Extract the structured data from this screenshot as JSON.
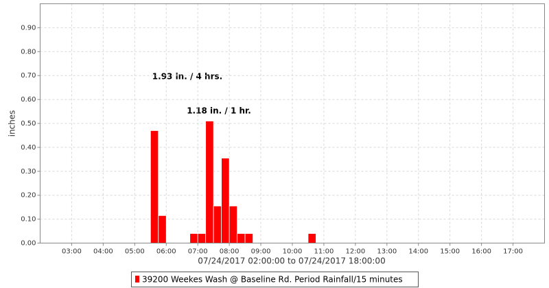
{
  "chart_data": {
    "type": "bar",
    "x_label": "07/24/2017 02:00:00 to 07/24/2017 18:00:00",
    "y_label": "inches",
    "annotations": [
      "1.93 in. / 4 hrs.",
      "1.18 in. / 1 hr."
    ],
    "series": [
      {
        "name": "39200 Weekes Wash @ Baseline Rd. Period Rainfall/15 minutes",
        "color": "#ff0000",
        "x": [
          5.5,
          5.75,
          6.75,
          7.0,
          7.25,
          7.5,
          7.75,
          8.0,
          8.25,
          8.5,
          10.5
        ],
        "values": [
          0.47,
          0.115,
          0.04,
          0.04,
          0.51,
          0.155,
          0.355,
          0.155,
          0.04,
          0.04,
          0.04
        ]
      }
    ],
    "xlim": [
      2,
      18
    ],
    "xticks": [
      {
        "value": 3,
        "label": "03:00"
      },
      {
        "value": 4,
        "label": "04:00"
      },
      {
        "value": 5,
        "label": "05:00"
      },
      {
        "value": 6,
        "label": "06:00"
      },
      {
        "value": 7,
        "label": "07:00"
      },
      {
        "value": 8,
        "label": "08:00"
      },
      {
        "value": 9,
        "label": "09:00"
      },
      {
        "value": 10,
        "label": "10:00"
      },
      {
        "value": 11,
        "label": "11:00"
      },
      {
        "value": 12,
        "label": "12:00"
      },
      {
        "value": 13,
        "label": "13:00"
      },
      {
        "value": 14,
        "label": "14:00"
      },
      {
        "value": 15,
        "label": "15:00"
      },
      {
        "value": 16,
        "label": "16:00"
      },
      {
        "value": 17,
        "label": "17:00"
      }
    ],
    "ylim": [
      0,
      1.0
    ],
    "yticks": [
      {
        "value": 0,
        "label": "0.00"
      },
      {
        "value": 0.1,
        "label": "0.10"
      },
      {
        "value": 0.2,
        "label": "0.20"
      },
      {
        "value": 0.3,
        "label": "0.30"
      },
      {
        "value": 0.4,
        "label": "0.40"
      },
      {
        "value": 0.5,
        "label": "0.50"
      },
      {
        "value": 0.6,
        "label": "0.60"
      },
      {
        "value": 0.7,
        "label": "0.70"
      },
      {
        "value": 0.8,
        "label": "0.80"
      },
      {
        "value": 0.9,
        "label": "0.90"
      }
    ],
    "grid": true
  }
}
